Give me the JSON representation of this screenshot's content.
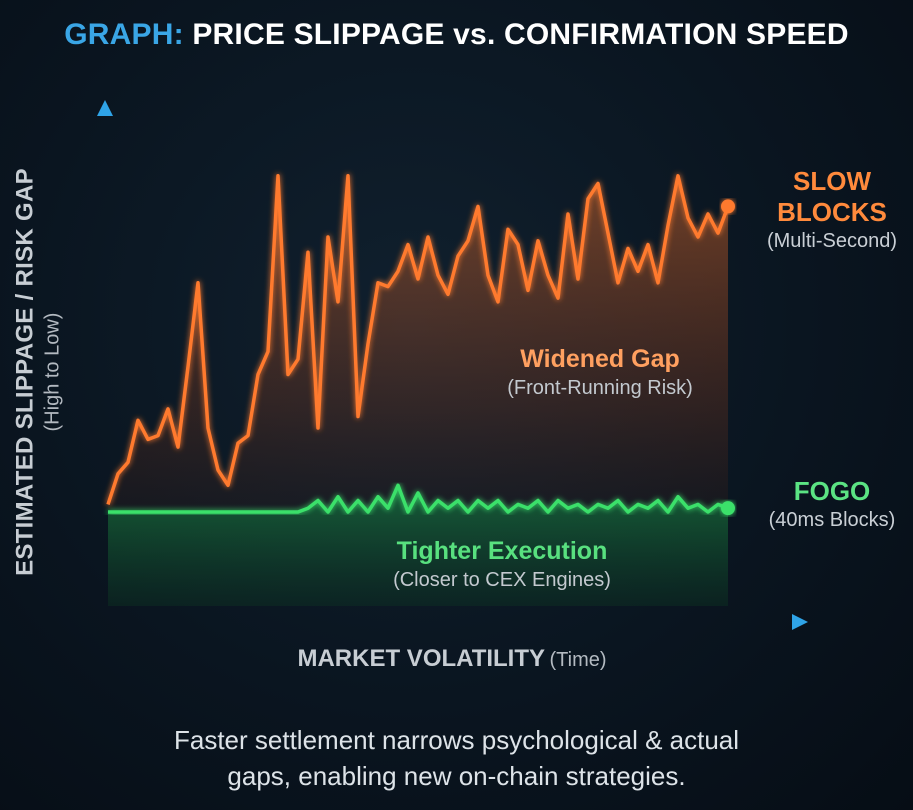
{
  "title": {
    "prefix": "GRAPH:",
    "text": "PRICE SLIPPAGE vs. CONFIRMATION SPEED"
  },
  "y_axis": {
    "label": "ESTIMATED SLIPPAGE / RISK GAP",
    "sublabel": "(High to Low)"
  },
  "x_axis": {
    "label": "MARKET VOLATILITY",
    "sublabel": "(Time)"
  },
  "series_labels": {
    "slow": {
      "line1": "SLOW",
      "line2": "BLOCKS",
      "sub": "(Multi-Second)"
    },
    "fogo": {
      "line1": "FOGO",
      "sub": "(40ms Blocks)"
    }
  },
  "annotations": {
    "gap": {
      "title": "Widened Gap",
      "sub": "(Front-Running Risk)"
    },
    "execution": {
      "title": "Tighter Execution",
      "sub": "(Closer to CEX Engines)"
    }
  },
  "caption": {
    "line1": "Faster settlement narrows psychological & actual",
    "line2": "gaps, enabling new on-chain strategies."
  },
  "colors": {
    "slow": "#ff7a2e",
    "fogo": "#3be06a",
    "axis": "#2fa4e8",
    "title_prefix": "#3aa6e6"
  },
  "chart_data": {
    "type": "line",
    "title": "GRAPH: PRICE SLIPPAGE vs. CONFIRMATION SPEED",
    "xlabel": "MARKET VOLATILITY (Time)",
    "ylabel": "ESTIMATED SLIPPAGE / RISK GAP (High to Low)",
    "xlim": [
      0,
      62
    ],
    "ylim": [
      0,
      100
    ],
    "grid": false,
    "legend": "end-of-line labels",
    "x": [
      0,
      1,
      2,
      3,
      4,
      5,
      6,
      7,
      8,
      9,
      10,
      11,
      12,
      13,
      14,
      15,
      16,
      17,
      18,
      19,
      20,
      21,
      22,
      23,
      24,
      25,
      26,
      27,
      28,
      29,
      30,
      31,
      32,
      33,
      34,
      35,
      36,
      37,
      38,
      39,
      40,
      41,
      42,
      43,
      44,
      45,
      46,
      47,
      48,
      49,
      50,
      51,
      52,
      53,
      54,
      55,
      56,
      57,
      58,
      59,
      60,
      61,
      62
    ],
    "series": [
      {
        "name": "SLOW BLOCKS",
        "values": [
          2,
          10,
          13,
          24,
          19,
          20,
          27,
          17,
          38,
          60,
          22,
          11,
          7,
          18,
          20,
          36,
          42,
          88,
          36,
          40,
          68,
          22,
          72,
          55,
          88,
          25,
          44,
          60,
          59,
          63,
          70,
          61,
          72,
          62,
          57,
          67,
          71,
          80,
          62,
          55,
          74,
          70,
          58,
          71,
          62,
          56,
          78,
          61,
          82,
          86,
          73,
          60,
          69,
          63,
          70,
          60,
          75,
          88,
          77,
          72,
          78,
          73,
          80
        ],
        "color": "#ff7a2e"
      },
      {
        "name": "FOGO",
        "values": [
          0,
          0,
          0,
          0,
          0,
          0,
          0,
          0,
          0,
          0,
          0,
          0,
          0,
          0,
          0,
          0,
          0,
          0,
          0,
          0,
          1,
          3,
          0,
          4,
          0,
          3,
          0,
          4,
          1,
          7,
          0,
          5,
          0,
          3,
          1,
          3,
          0,
          3,
          1,
          3,
          0,
          2,
          1,
          3,
          0,
          3,
          1,
          2,
          0,
          2,
          1,
          3,
          0,
          2,
          1,
          3,
          0,
          4,
          1,
          2,
          0,
          2,
          1
        ],
        "color": "#3be06a"
      }
    ]
  }
}
